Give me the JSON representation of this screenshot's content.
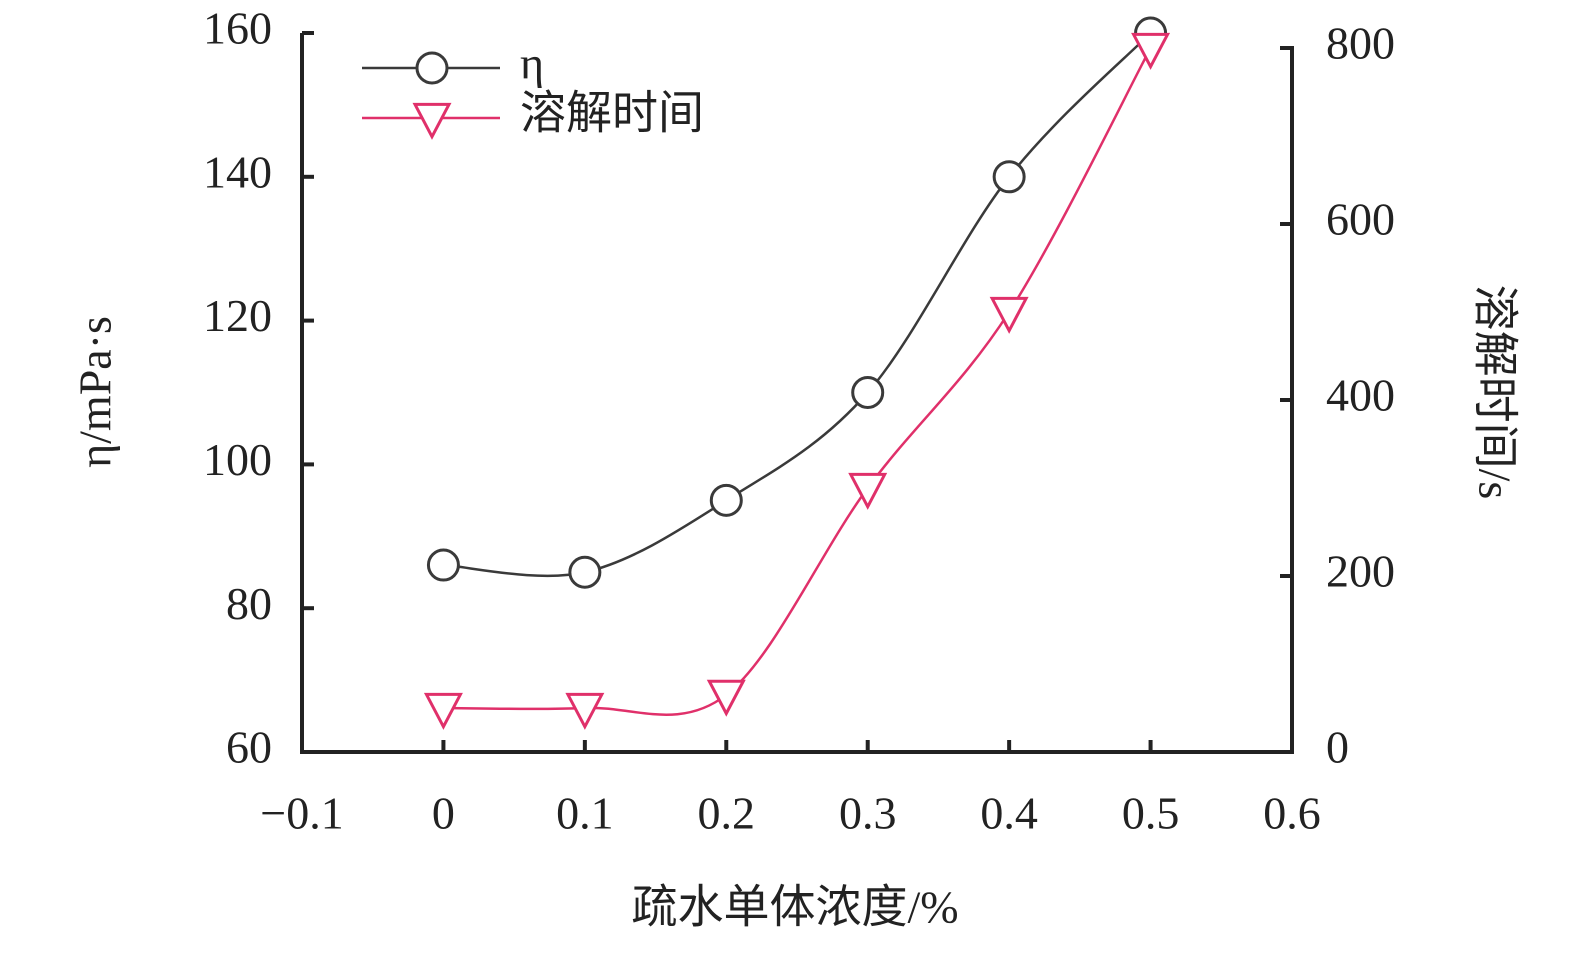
{
  "chart_data": {
    "type": "line",
    "xlabel": "疏水单体浓度/%",
    "ylabel": "η/mPa·s",
    "y2label": "溶解时间/s",
    "x": [
      0,
      0.1,
      0.2,
      0.3,
      0.4,
      0.5
    ],
    "series": [
      {
        "name": "η",
        "color": "#3a3a3a",
        "marker": "circle",
        "values": [
          86,
          85,
          95,
          110,
          140,
          160
        ]
      },
      {
        "name": "溶解时间",
        "color": "#e0306a",
        "marker": "triangle-down",
        "axis": "y2",
        "values": [
          50,
          50,
          65,
          300,
          500,
          800
        ]
      }
    ],
    "xlim": [
      -0.1,
      0.6
    ],
    "xticks": [
      {
        "value": -0.1,
        "label": "−0.1"
      },
      0,
      0.1,
      0.2,
      0.3,
      0.4,
      0.5,
      0.6
    ],
    "ylim": [
      60,
      160
    ],
    "yticks": [
      60,
      80,
      100,
      120,
      140,
      160
    ],
    "y2lim": [
      0,
      800
    ],
    "y2ticks": [
      0,
      200,
      400,
      600,
      800
    ],
    "legend": "upper-left",
    "smooth": true
  }
}
